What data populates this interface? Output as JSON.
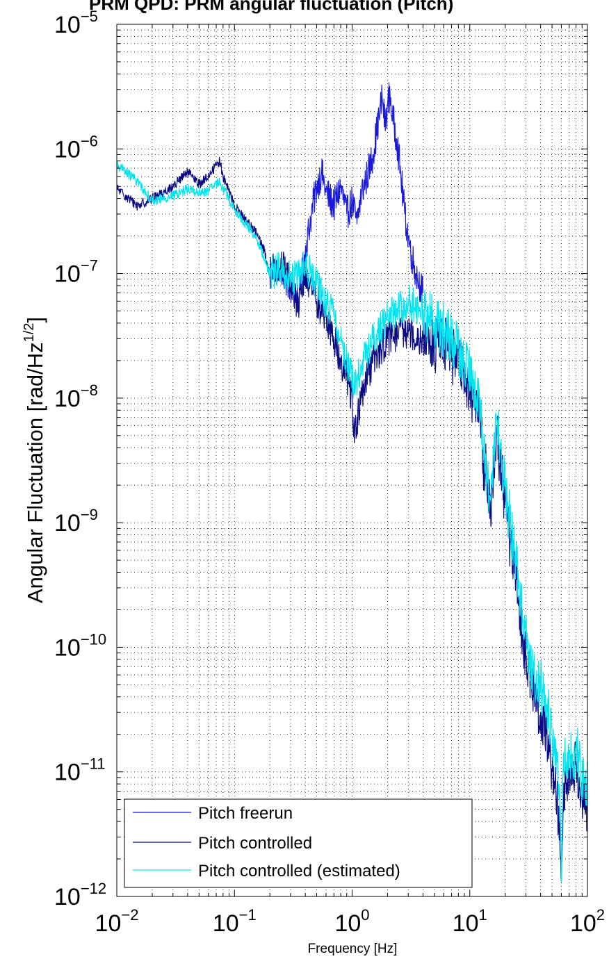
{
  "chart_data": {
    "type": "line",
    "title": "PRM QPD: PRM angular fluctuation (Pitch)",
    "xlabel": "Frequency [Hz]",
    "ylabel_main": "Angular Fluctuation [rad/Hz",
    "ylabel_sup": "1/2",
    "ylabel_end": "]",
    "x_scale": "log",
    "y_scale": "log",
    "xlim": [
      0.01,
      100
    ],
    "ylim": [
      1e-12,
      1e-05
    ],
    "x_ticks": [
      {
        "base": "10",
        "exp": "−2"
      },
      {
        "base": "10",
        "exp": "−1"
      },
      {
        "base": "10",
        "exp": "0"
      },
      {
        "base": "10",
        "exp": "1"
      },
      {
        "base": "10",
        "exp": "2"
      }
    ],
    "y_ticks": [
      {
        "base": "10",
        "exp": "−12"
      },
      {
        "base": "10",
        "exp": "−11"
      },
      {
        "base": "10",
        "exp": "−10"
      },
      {
        "base": "10",
        "exp": "−9"
      },
      {
        "base": "10",
        "exp": "−8"
      },
      {
        "base": "10",
        "exp": "−7"
      },
      {
        "base": "10",
        "exp": "−6"
      },
      {
        "base": "10",
        "exp": "−5"
      }
    ],
    "grid": true,
    "legend_position": "bottom-left",
    "series": [
      {
        "name": "Pitch freerun",
        "color": "#1a1adc",
        "x": [
          0.25,
          0.3,
          0.35,
          0.4,
          0.45,
          0.5,
          0.55,
          0.6,
          0.7,
          0.8,
          0.9,
          1.0,
          1.1,
          1.2,
          1.3,
          1.4,
          1.5,
          1.6,
          1.7,
          1.8,
          1.9,
          2.0,
          2.1,
          2.2,
          2.4,
          2.6,
          2.8,
          3.0,
          3.2,
          3.5,
          3.8,
          4.0
        ],
        "y": [
          1e-07,
          8e-08,
          6e-08,
          1.5e-07,
          3e-07,
          5e-07,
          6.5e-07,
          4.5e-07,
          3.5e-07,
          5e-07,
          3e-07,
          3.8e-07,
          2.5e-07,
          4.5e-07,
          5.5e-07,
          7e-07,
          9e-07,
          1.3e-06,
          1.8e-06,
          2.6e-06,
          1.6e-06,
          2.2e-06,
          2.8e-06,
          1.8e-06,
          1.2e-06,
          6e-07,
          3e-07,
          2e-07,
          1.4e-07,
          1e-07,
          8e-08,
          7e-08
        ]
      },
      {
        "name": "Pitch controlled",
        "color": "#0a0a82",
        "x": [
          0.01,
          0.015,
          0.02,
          0.03,
          0.04,
          0.05,
          0.06,
          0.07,
          0.075,
          0.08,
          0.09,
          0.1,
          0.12,
          0.15,
          0.18,
          0.2,
          0.25,
          0.3,
          0.35,
          0.4,
          0.5,
          0.6,
          0.7,
          0.8,
          0.9,
          1.0,
          1.05,
          1.2,
          1.5,
          2.0,
          3.0,
          4.0,
          5.0,
          6.0,
          7.0,
          8.0,
          9.0,
          10.0,
          11.0,
          12.0,
          13.0,
          14.0,
          15.0,
          16.0,
          17.0,
          18.0,
          20.0,
          22.0,
          25.0,
          28.0,
          30.0,
          35.0,
          40.0,
          45.0,
          50.0,
          55.0,
          58.0,
          60.0,
          62.0,
          65.0,
          70.0,
          75.0,
          80.0,
          85.0,
          90.0,
          95.0,
          100.0
        ],
        "y": [
          4.8e-07,
          3.5e-07,
          4e-07,
          5e-07,
          6.5e-07,
          5.2e-07,
          6e-07,
          7.5e-07,
          8e-07,
          6e-07,
          4.5e-07,
          3.5e-07,
          2.8e-07,
          2.2e-07,
          1.5e-07,
          1e-07,
          1.2e-07,
          8e-08,
          5.5e-08,
          1e-07,
          6e-08,
          4.5e-08,
          3e-08,
          2e-08,
          1.5e-08,
          1e-08,
          5e-09,
          1e-08,
          2e-08,
          3e-08,
          3.5e-08,
          3e-08,
          2.5e-08,
          3e-08,
          2e-08,
          2.5e-08,
          1.5e-08,
          1.2e-08,
          8e-09,
          1e-08,
          3e-09,
          2.5e-09,
          1.2e-09,
          3e-09,
          6e-09,
          3e-09,
          1.5e-09,
          7e-10,
          3.5e-10,
          1.2e-10,
          8e-11,
          4e-11,
          3e-11,
          2e-11,
          1e-11,
          6e-12,
          4e-12,
          1.3e-12,
          5e-12,
          8e-12,
          1e-11,
          8e-12,
          1.2e-11,
          9e-12,
          7e-12,
          6e-12,
          5e-12
        ]
      },
      {
        "name": "Pitch controlled (estimated)",
        "color": "#00e6f0",
        "x": [
          0.01,
          0.015,
          0.02,
          0.03,
          0.04,
          0.05,
          0.06,
          0.07,
          0.075,
          0.08,
          0.09,
          0.1,
          0.12,
          0.15,
          0.18,
          0.2,
          0.25,
          0.3,
          0.35,
          0.4,
          0.5,
          0.6,
          0.7,
          0.8,
          0.9,
          1.0,
          1.05,
          1.2,
          1.5,
          2.0,
          3.0,
          4.0,
          5.0,
          6.0,
          7.0,
          8.0,
          9.0,
          10.0,
          11.0,
          12.0,
          13.0,
          14.0,
          15.0,
          16.0,
          17.0,
          18.0,
          20.0,
          22.0,
          25.0,
          28.0,
          30.0,
          35.0,
          40.0,
          45.0,
          50.0,
          55.0,
          58.0,
          60.0,
          62.0,
          65.0,
          70.0,
          75.0,
          80.0,
          85.0,
          90.0,
          95.0,
          100.0
        ],
        "y": [
          7.5e-07,
          5.5e-07,
          3.8e-07,
          4.2e-07,
          4.8e-07,
          4.4e-07,
          4.6e-07,
          5.2e-07,
          5.5e-07,
          4.8e-07,
          4e-07,
          3.2e-07,
          2.6e-07,
          2e-07,
          1.3e-07,
          1e-07,
          1.1e-07,
          9e-08,
          9.5e-08,
          1.2e-07,
          8e-08,
          6e-08,
          4.5e-08,
          3e-08,
          2e-08,
          1.5e-08,
          1.2e-08,
          1.8e-08,
          3e-08,
          4.5e-08,
          6e-08,
          5e-08,
          4e-08,
          3.5e-08,
          3e-08,
          2.5e-08,
          2e-08,
          1.5e-08,
          1e-08,
          1.2e-08,
          4e-09,
          2.5e-09,
          1.5e-09,
          3.5e-09,
          7e-09,
          4e-09,
          2e-09,
          1e-09,
          4.5e-10,
          2e-10,
          1.3e-10,
          6e-11,
          5e-11,
          3.5e-11,
          2e-11,
          1.2e-11,
          8e-12,
          1.3e-12,
          9e-12,
          1.3e-11,
          1.5e-11,
          1.1e-11,
          1.6e-11,
          1.2e-11,
          1e-11,
          9e-12,
          8e-12
        ]
      }
    ]
  }
}
